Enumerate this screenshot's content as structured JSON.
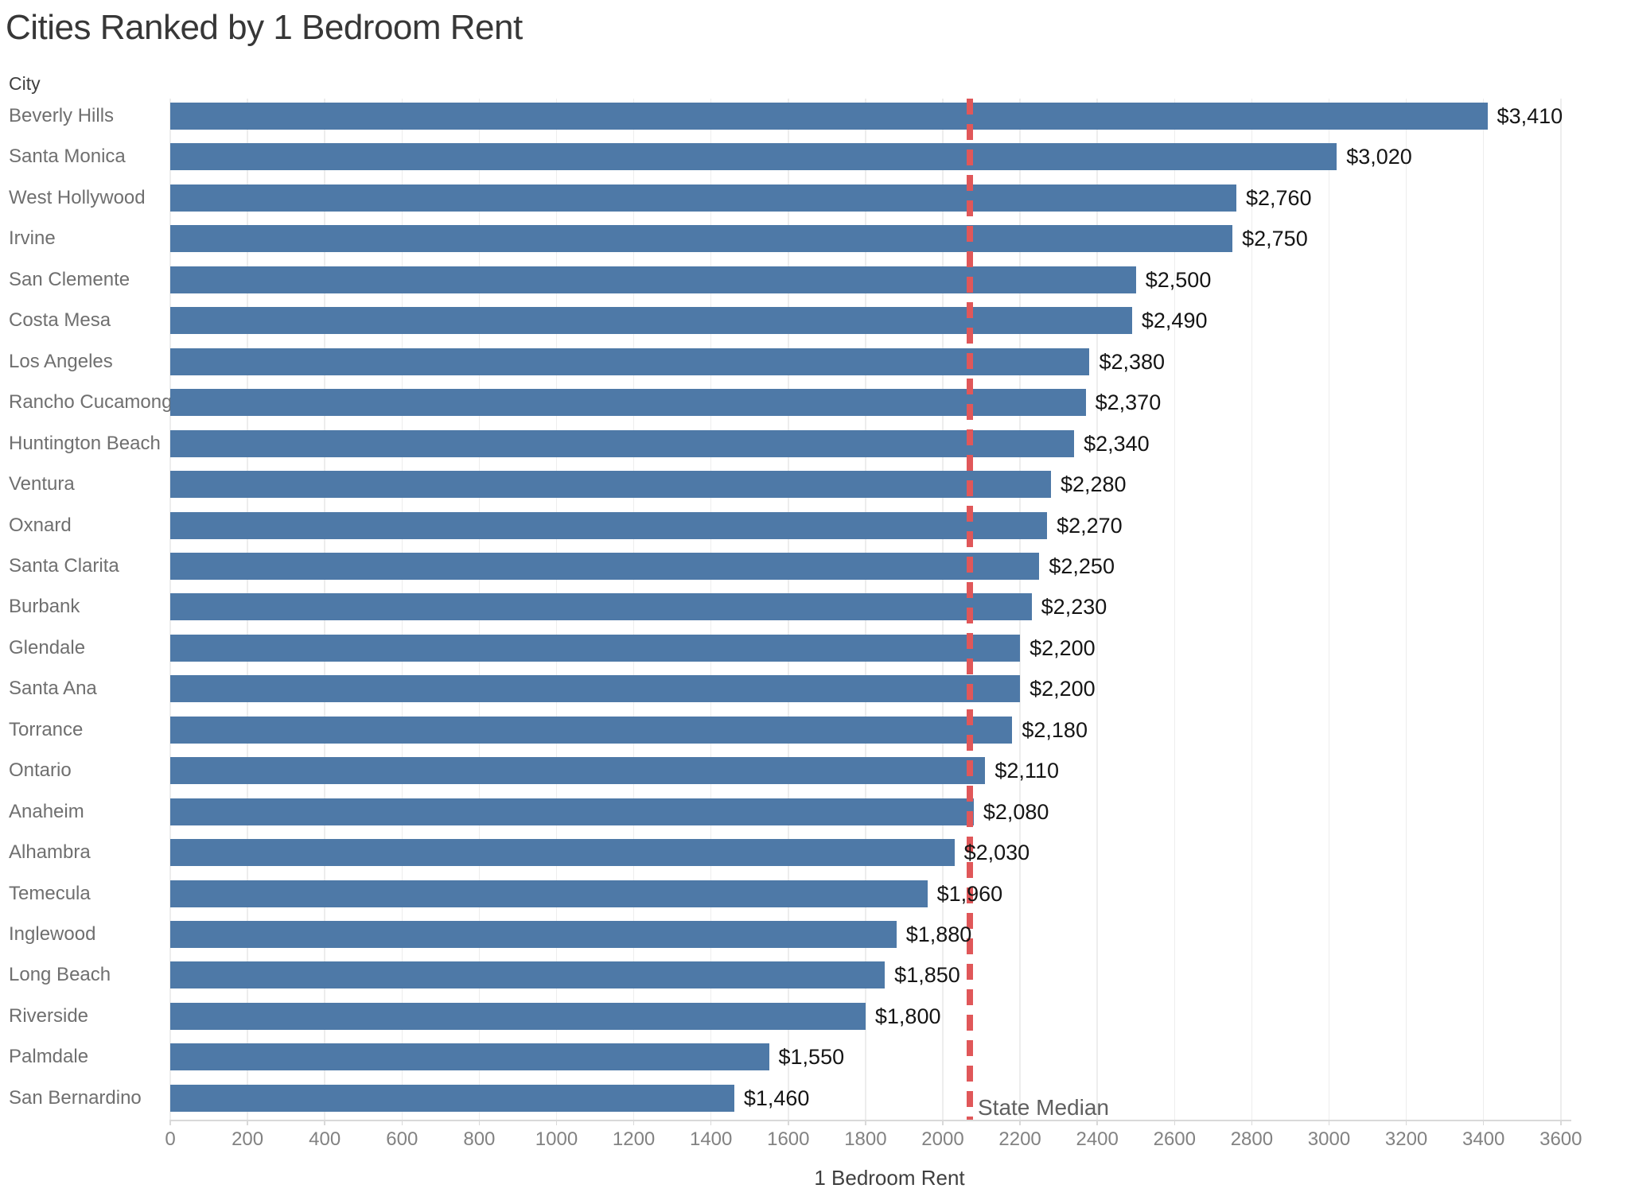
{
  "title": "Cities Ranked by 1 Bedroom Rent",
  "row_header": "City",
  "axis": {
    "title": "1 Bedroom Rent",
    "min": 0,
    "max": 3600,
    "tick_step": 200
  },
  "reference_line": {
    "label": "State Median",
    "value": 2070
  },
  "colors": {
    "bar": "#4e79a7",
    "reference_line": "#e05759",
    "gridline": "#ededed",
    "axis_line": "#d9d9d9",
    "tick_label": "#828282",
    "category_label": "#6f6f6f",
    "value_label": "#151515",
    "title": "#373737"
  },
  "chart_data": {
    "type": "bar",
    "orientation": "horizontal",
    "title": "Cities Ranked by 1 Bedroom Rent",
    "xlabel": "1 Bedroom Rent",
    "ylabel": "City",
    "xlim": [
      0,
      3600
    ],
    "grid": "vertical",
    "legend": false,
    "ticks": [
      0,
      200,
      400,
      600,
      800,
      1000,
      1200,
      1400,
      1600,
      1800,
      2000,
      2200,
      2400,
      2600,
      2800,
      3000,
      3200,
      3400,
      3600
    ],
    "categories": [
      "Beverly Hills",
      "Santa Monica",
      "West Hollywood",
      "Irvine",
      "San Clemente",
      "Costa Mesa",
      "Los Angeles",
      "Rancho Cucamonga",
      "Huntington Beach",
      "Ventura",
      "Oxnard",
      "Santa Clarita",
      "Burbank",
      "Glendale",
      "Santa Ana",
      "Torrance",
      "Ontario",
      "Anaheim",
      "Alhambra",
      "Temecula",
      "Inglewood",
      "Long Beach",
      "Riverside",
      "Palmdale",
      "San Bernardino"
    ],
    "values": [
      3410,
      3020,
      2760,
      2750,
      2500,
      2490,
      2380,
      2370,
      2340,
      2280,
      2270,
      2250,
      2230,
      2200,
      2200,
      2180,
      2110,
      2080,
      2030,
      1960,
      1880,
      1850,
      1800,
      1550,
      1460
    ],
    "value_labels": [
      "$3,410",
      "$3,020",
      "$2,760",
      "$2,750",
      "$2,500",
      "$2,490",
      "$2,380",
      "$2,370",
      "$2,340",
      "$2,280",
      "$2,270",
      "$2,250",
      "$2,230",
      "$2,200",
      "$2,200",
      "$2,180",
      "$2,110",
      "$2,080",
      "$2,030",
      "$1,960",
      "$1,880",
      "$1,850",
      "$1,800",
      "$1,550",
      "$1,460"
    ],
    "reference_line": {
      "label": "State Median",
      "value": 2070,
      "style": "dashed"
    }
  }
}
